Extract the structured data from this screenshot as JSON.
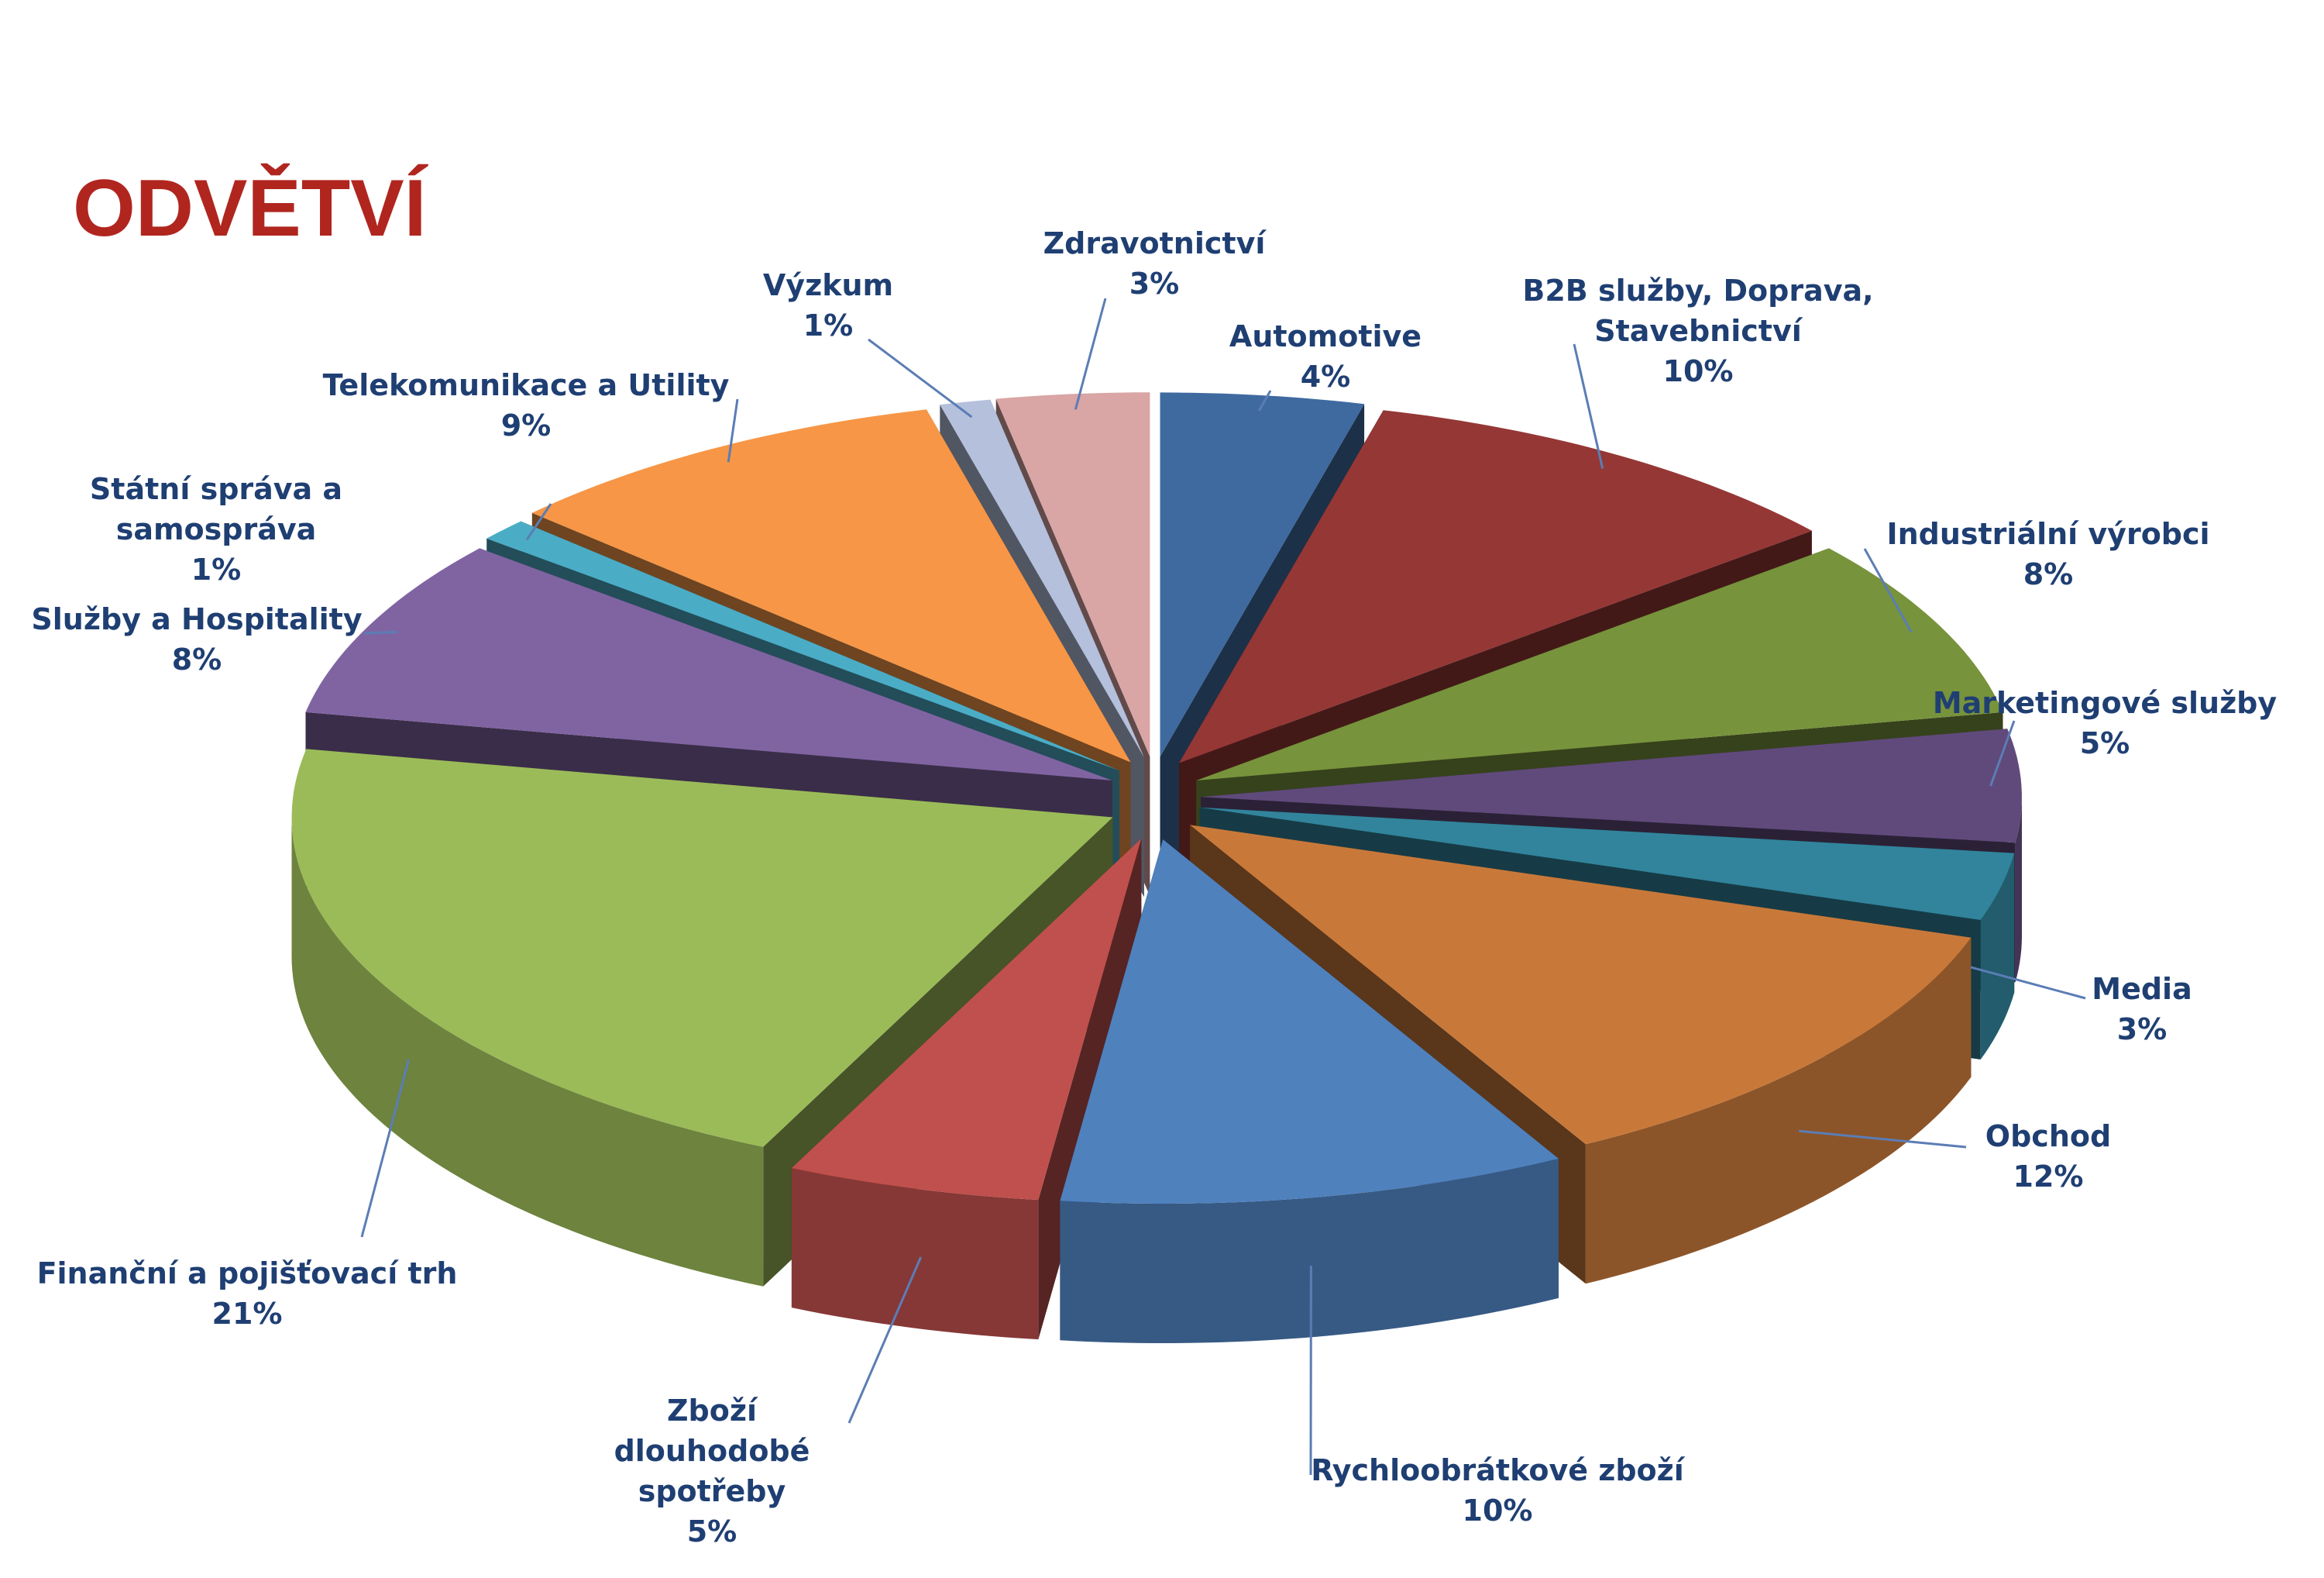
{
  "chart_data": {
    "type": "pie3d",
    "title": "ODVĚTVÍ",
    "categories": [
      "Automotive",
      "B2B služby, Doprava, Stavebnictví",
      "Industriální výrobci",
      "Marketingové služby",
      "Media",
      "Obchod",
      "Rychloobrátkové zboží",
      "Zboží dlouhodobé spotřeby",
      "Finanční a pojišťovací trh",
      "Služby a Hospitality",
      "Státní správa a samospráva",
      "Telekomunikace a Utility",
      "Výzkum",
      "Zdravotnictví"
    ],
    "values": [
      4,
      10,
      8,
      5,
      3,
      12,
      10,
      5,
      21,
      8,
      1,
      9,
      1,
      3
    ],
    "value_labels": [
      "4%",
      "10%",
      "8%",
      "5%",
      "3%",
      "12%",
      "10%",
      "5%",
      "21%",
      "8%",
      "1%",
      "9%",
      "1%",
      "3%"
    ],
    "colors": [
      "#3f6aa0",
      "#953735",
      "#77933c",
      "#604a7b",
      "#31849b",
      "#c8793a",
      "#4f81bd",
      "#c0504d",
      "#9bbb59",
      "#8064a2",
      "#4bacc6",
      "#f79646",
      "#b4c0dc",
      "#d9a5a5"
    ]
  }
}
